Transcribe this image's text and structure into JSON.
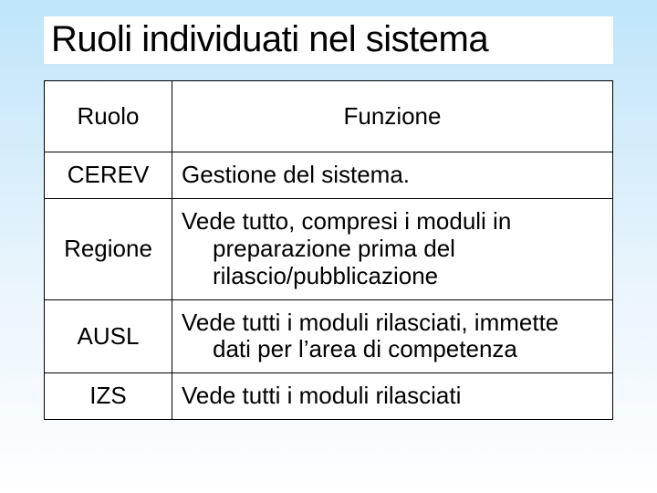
{
  "title": "Ruoli individuati nel sistema",
  "table": {
    "headers": {
      "role": "Ruolo",
      "func": "Funzione"
    },
    "rows": [
      {
        "role": "CEREV",
        "func_html": "Gestione del sistema."
      },
      {
        "role": "Regione",
        "func_html": "Vede tutto, compresi i moduli in<span class=\"indent\">preparazione prima del<br>rilascio/pubblicazione</span>"
      },
      {
        "role": "AUSL",
        "func_html": "Vede tutti i moduli rilasciati, immette<span class=\"indent\">dati per l’area di competenza</span>"
      },
      {
        "role": "IZS",
        "func_html": "Vede tutti i moduli rilasciati"
      }
    ]
  }
}
